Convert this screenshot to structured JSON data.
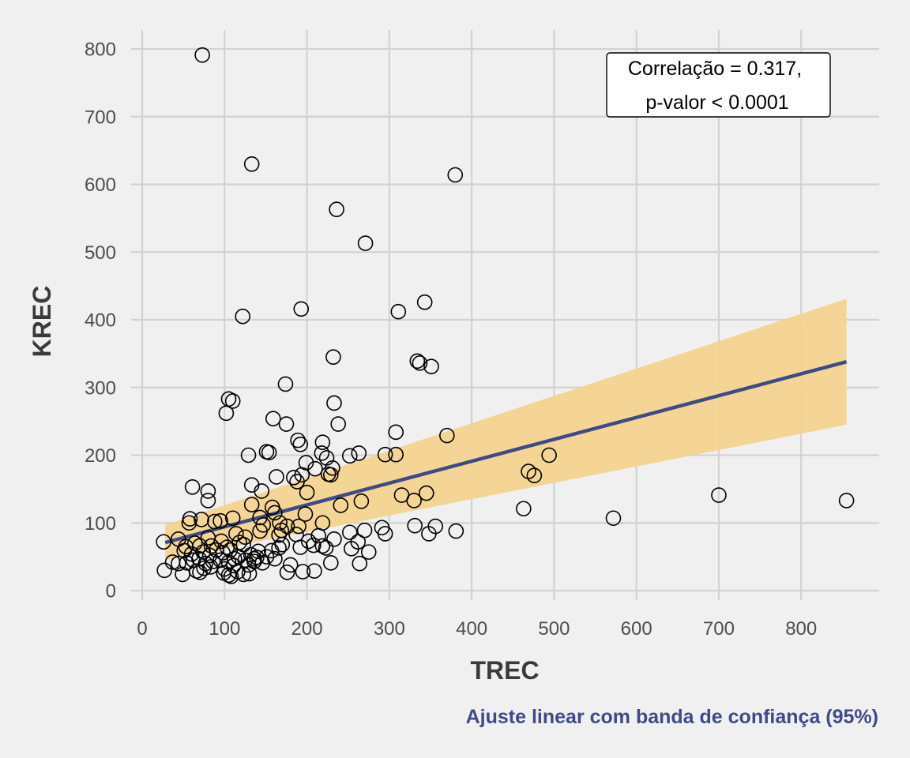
{
  "chart_data": {
    "type": "scatter",
    "xlabel": "TREC",
    "ylabel": "KREC",
    "caption": "Ajuste linear com banda de confiança (95%)",
    "xlim": [
      0,
      850
    ],
    "ylim": [
      0,
      800
    ],
    "xticks": [
      0,
      100,
      200,
      300,
      400,
      500,
      600,
      700,
      800
    ],
    "yticks": [
      0,
      100,
      200,
      300,
      400,
      500,
      600,
      700,
      800
    ],
    "grid": true,
    "annotation": {
      "line1": "Correlação = 0.317,",
      "line2": "p-valor < 0.0001"
    },
    "fit": {
      "x": [
        28,
        855
      ],
      "y": [
        71,
        338
      ],
      "ci_lower": [
        45,
        245
      ],
      "ci_upper": [
        97,
        431
      ]
    },
    "colors": {
      "fit_line": "#3f4a87",
      "band": "#f5d28e",
      "caption": "#3f4a87",
      "background": "#f0f0f0"
    },
    "points": [
      [
        73,
        791
      ],
      [
        133,
        630
      ],
      [
        380,
        614
      ],
      [
        236,
        563
      ],
      [
        271,
        513
      ],
      [
        343,
        426
      ],
      [
        311,
        412
      ],
      [
        193,
        416
      ],
      [
        122,
        405
      ],
      [
        232,
        345
      ],
      [
        334,
        339
      ],
      [
        337,
        336
      ],
      [
        351,
        331
      ],
      [
        174,
        305
      ],
      [
        105,
        283
      ],
      [
        110,
        280
      ],
      [
        102,
        262
      ],
      [
        233,
        277
      ],
      [
        159,
        254
      ],
      [
        175,
        246
      ],
      [
        238,
        246
      ],
      [
        308,
        234
      ],
      [
        189,
        222
      ],
      [
        370,
        229
      ],
      [
        192,
        216
      ],
      [
        219,
        219
      ],
      [
        151,
        205
      ],
      [
        154,
        204
      ],
      [
        129,
        200
      ],
      [
        218,
        203
      ],
      [
        252,
        199
      ],
      [
        263,
        203
      ],
      [
        295,
        201
      ],
      [
        308,
        201
      ],
      [
        494,
        200
      ],
      [
        224,
        196
      ],
      [
        199,
        189
      ],
      [
        231,
        181
      ],
      [
        210,
        180
      ],
      [
        226,
        172
      ],
      [
        229,
        171
      ],
      [
        194,
        171
      ],
      [
        163,
        168
      ],
      [
        184,
        167
      ],
      [
        188,
        161
      ],
      [
        469,
        176
      ],
      [
        476,
        170
      ],
      [
        133,
        156
      ],
      [
        61,
        153
      ],
      [
        145,
        147
      ],
      [
        80,
        147
      ],
      [
        200,
        145
      ],
      [
        345,
        144
      ],
      [
        315,
        141
      ],
      [
        700,
        141
      ],
      [
        80,
        133
      ],
      [
        133,
        127
      ],
      [
        266,
        132
      ],
      [
        241,
        126
      ],
      [
        330,
        133
      ],
      [
        855,
        133
      ],
      [
        158,
        123
      ],
      [
        161,
        115
      ],
      [
        463,
        121
      ],
      [
        198,
        113
      ],
      [
        143,
        108
      ],
      [
        110,
        107
      ],
      [
        95,
        103
      ],
      [
        72,
        105
      ],
      [
        58,
        106
      ],
      [
        57,
        100
      ],
      [
        88,
        102
      ],
      [
        167,
        100
      ],
      [
        219,
        100
      ],
      [
        572,
        107
      ],
      [
        147,
        97
      ],
      [
        176,
        95
      ],
      [
        190,
        95
      ],
      [
        270,
        89
      ],
      [
        252,
        86
      ],
      [
        291,
        93
      ],
      [
        295,
        84
      ],
      [
        331,
        96
      ],
      [
        356,
        95
      ],
      [
        348,
        84
      ],
      [
        381,
        88
      ],
      [
        202,
        73
      ],
      [
        233,
        76
      ],
      [
        214,
        81
      ],
      [
        187,
        83
      ],
      [
        166,
        82
      ],
      [
        169,
        89
      ],
      [
        114,
        84
      ],
      [
        125,
        79
      ],
      [
        143,
        88
      ],
      [
        118,
        71
      ],
      [
        123,
        68
      ],
      [
        103,
        64
      ],
      [
        80,
        78
      ],
      [
        96,
        73
      ],
      [
        84,
        66
      ],
      [
        64,
        70
      ],
      [
        70,
        66
      ],
      [
        26,
        72
      ],
      [
        44,
        76
      ],
      [
        53,
        65
      ],
      [
        219,
        66
      ],
      [
        223,
        63
      ],
      [
        208,
        67
      ],
      [
        254,
        62
      ],
      [
        275,
        57
      ],
      [
        166,
        63
      ],
      [
        170,
        68
      ],
      [
        192,
        64
      ],
      [
        141,
        58
      ],
      [
        157,
        59
      ],
      [
        262,
        72
      ],
      [
        51,
        59
      ],
      [
        60,
        54
      ],
      [
        74,
        57
      ],
      [
        82,
        52
      ],
      [
        90,
        60
      ],
      [
        98,
        56
      ],
      [
        107,
        60
      ],
      [
        117,
        50
      ],
      [
        132,
        53
      ],
      [
        136,
        47
      ],
      [
        151,
        50
      ],
      [
        161,
        47
      ],
      [
        69,
        47
      ],
      [
        62,
        45
      ],
      [
        44,
        40
      ],
      [
        37,
        42
      ],
      [
        54,
        41
      ],
      [
        77,
        40
      ],
      [
        86,
        43
      ],
      [
        95,
        45
      ],
      [
        105,
        42
      ],
      [
        112,
        47
      ],
      [
        125,
        45
      ],
      [
        136,
        43
      ],
      [
        139,
        49
      ],
      [
        83,
        35
      ],
      [
        100,
        32
      ],
      [
        111,
        37
      ],
      [
        129,
        38
      ],
      [
        146,
        41
      ],
      [
        180,
        38
      ],
      [
        229,
        41
      ],
      [
        264,
        40
      ],
      [
        27,
        30
      ],
      [
        49,
        24
      ],
      [
        66,
        29
      ],
      [
        70,
        27
      ],
      [
        75,
        33
      ],
      [
        99,
        26
      ],
      [
        105,
        23
      ],
      [
        108,
        21
      ],
      [
        116,
        28
      ],
      [
        123,
        24
      ],
      [
        130,
        25
      ],
      [
        176,
        27
      ],
      [
        195,
        28
      ],
      [
        209,
        29
      ]
    ]
  }
}
